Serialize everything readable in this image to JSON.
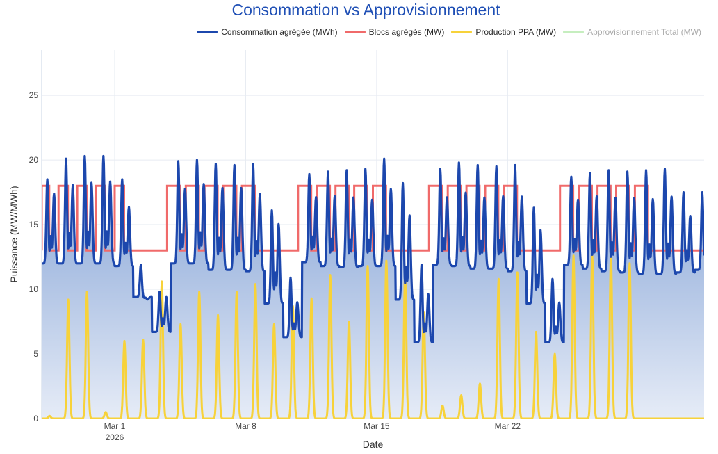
{
  "chart_data": {
    "type": "line",
    "title": "Consommation vs Approvisionnement",
    "xlabel": "Date",
    "ylabel": "Puissance (MW/MWh)",
    "ylim": [
      0,
      28.5
    ],
    "xrange_days": [
      -3.9,
      31.5
    ],
    "x_ticks": [
      {
        "day": 0,
        "label": "Mar 1",
        "sublabel": "2026"
      },
      {
        "day": 7,
        "label": "Mar 8",
        "sublabel": ""
      },
      {
        "day": 14,
        "label": "Mar 15",
        "sublabel": ""
      },
      {
        "day": 21,
        "label": "Mar 22",
        "sublabel": ""
      }
    ],
    "y_ticks": [
      0,
      5,
      10,
      15,
      20,
      25
    ],
    "grid": true,
    "legend_position": "top-right",
    "series": [
      {
        "name": "Consommation agrégée (MWh)",
        "color": "#1c47ad",
        "fill": true,
        "visible": true,
        "daily": [
          {
            "day": -3.9,
            "base": 12,
            "peak1": 18.5,
            "peak2": 17.8
          },
          {
            "day": -3,
            "base": 12,
            "peak1": 20.1,
            "peak2": 18.5
          },
          {
            "day": -2,
            "base": 12,
            "peak1": 20.3,
            "peak2": 18.7
          },
          {
            "day": -1,
            "base": 12,
            "peak1": 20.3,
            "peak2": 18.8
          },
          {
            "day": 0,
            "base": 11.8,
            "peak1": 18.5,
            "peak2": 16.7
          },
          {
            "day": 1,
            "base": 9.4,
            "peak1": 11.9,
            "peak2": 9.2
          },
          {
            "day": 2,
            "base": 6.7,
            "peak1": 9.8,
            "peak2": 9.6
          },
          {
            "day": 3,
            "base": 12,
            "peak1": 19.9,
            "peak2": 18.2
          },
          {
            "day": 4,
            "base": 12,
            "peak1": 20.0,
            "peak2": 18.6
          },
          {
            "day": 5,
            "base": 11.5,
            "peak1": 19.7,
            "peak2": 18.3
          },
          {
            "day": 6,
            "base": 11.5,
            "peak1": 19.6,
            "peak2": 18.3
          },
          {
            "day": 7,
            "base": 11.4,
            "peak1": 19.7,
            "peak2": 17.8
          },
          {
            "day": 8,
            "base": 8.9,
            "peak1": 16.1,
            "peak2": 15.5
          },
          {
            "day": 9,
            "base": 6.3,
            "peak1": 10.9,
            "peak2": 9.2
          },
          {
            "day": 10,
            "base": 12.1,
            "peak1": 18.9,
            "peak2": 17.5
          },
          {
            "day": 11,
            "base": 11.8,
            "peak1": 19.1,
            "peak2": 17.6
          },
          {
            "day": 12,
            "base": 11.7,
            "peak1": 19.2,
            "peak2": 17.5
          },
          {
            "day": 13,
            "base": 11.8,
            "peak1": 19.3,
            "peak2": 17.3
          },
          {
            "day": 14,
            "base": 11.8,
            "peak1": 20.1,
            "peak2": 18.2
          },
          {
            "day": 15,
            "base": 9.2,
            "peak1": 18.2,
            "peak2": 16.2
          },
          {
            "day": 16,
            "base": 5.9,
            "peak1": 11.9,
            "peak2": 9.9
          },
          {
            "day": 17,
            "base": 11.9,
            "peak1": 19.3,
            "peak2": 17.5
          },
          {
            "day": 18,
            "base": 11.8,
            "peak1": 19.8,
            "peak2": 17.9
          },
          {
            "day": 19,
            "base": 11.6,
            "peak1": 19.6,
            "peak2": 17.5
          },
          {
            "day": 20,
            "base": 11.6,
            "peak1": 19.5,
            "peak2": 17.6
          },
          {
            "day": 21,
            "base": 11.4,
            "peak1": 19.6,
            "peak2": 17.6
          },
          {
            "day": 22,
            "base": 8.9,
            "peak1": 16.3,
            "peak2": 15.0
          },
          {
            "day": 23,
            "base": 5.9,
            "peak1": 10.8,
            "peak2": 9.2
          },
          {
            "day": 24,
            "base": 11.9,
            "peak1": 18.7,
            "peak2": 17.3
          },
          {
            "day": 25,
            "base": 11.6,
            "peak1": 19.0,
            "peak2": 17.6
          },
          {
            "day": 26,
            "base": 11.4,
            "peak1": 19.2,
            "peak2": 17.5
          },
          {
            "day": 27,
            "base": 11.3,
            "peak1": 19.1,
            "peak2": 17.5
          },
          {
            "day": 28,
            "base": 11.2,
            "peak1": 19.2,
            "peak2": 17.4
          },
          {
            "day": 29,
            "base": 11.2,
            "peak1": 19.3,
            "peak2": 17.6
          },
          {
            "day": 30,
            "base": 11.3,
            "peak1": 17.5,
            "peak2": 16.0
          },
          {
            "day": 31,
            "base": 11.5,
            "peak1": 17.5,
            "peak2": 15.0
          }
        ]
      },
      {
        "name": "Blocs agrégés (MW)",
        "color": "#f06a6a",
        "fill": false,
        "visible": true,
        "high_value": 18,
        "low_value": 13,
        "high_intervals": [
          [
            -3.9,
            -3.5
          ],
          [
            -3,
            -2.5
          ],
          [
            -2,
            -1.5
          ],
          [
            -1,
            -0.5
          ],
          [
            0,
            0.5
          ],
          [
            2.8,
            3.5
          ],
          [
            3.8,
            4.5
          ],
          [
            4.8,
            5.5
          ],
          [
            5.8,
            6.5
          ],
          [
            6.8,
            7.5
          ],
          [
            9.8,
            10.5
          ],
          [
            10.8,
            11.5
          ],
          [
            11.8,
            12.5
          ],
          [
            12.8,
            13.5
          ],
          [
            13.8,
            14.5
          ],
          [
            16.8,
            17.5
          ],
          [
            17.8,
            18.5
          ],
          [
            18.8,
            19.5
          ],
          [
            19.8,
            20.5
          ],
          [
            20.8,
            21.5
          ],
          [
            23.8,
            24.5
          ],
          [
            24.8,
            25.5
          ],
          [
            25.8,
            26.5
          ],
          [
            26.8,
            27.5
          ],
          [
            27.8,
            28.5
          ]
        ]
      },
      {
        "name": "Production PPA (MW)",
        "color": "#f7d23a",
        "fill": false,
        "visible": true,
        "daily_peaks": [
          {
            "day": -3.9,
            "peak": 0.2
          },
          {
            "day": -3,
            "peak": 9.2
          },
          {
            "day": -2,
            "peak": 9.8
          },
          {
            "day": -1,
            "peak": 0.5
          },
          {
            "day": 0,
            "peak": 6.0
          },
          {
            "day": 1,
            "peak": 6.1
          },
          {
            "day": 2,
            "peak": 10.6
          },
          {
            "day": 3,
            "peak": 7.3
          },
          {
            "day": 4,
            "peak": 9.8
          },
          {
            "day": 5,
            "peak": 8.0
          },
          {
            "day": 6,
            "peak": 9.8
          },
          {
            "day": 7,
            "peak": 10.4
          },
          {
            "day": 8,
            "peak": 7.3
          },
          {
            "day": 9,
            "peak": 8.7
          },
          {
            "day": 10,
            "peak": 9.3
          },
          {
            "day": 11,
            "peak": 11.1
          },
          {
            "day": 12,
            "peak": 7.5
          },
          {
            "day": 13,
            "peak": 11.8
          },
          {
            "day": 14,
            "peak": 12.2
          },
          {
            "day": 15,
            "peak": 11.1
          },
          {
            "day": 16,
            "peak": 8.2
          },
          {
            "day": 17,
            "peak": 1.0
          },
          {
            "day": 18,
            "peak": 1.8
          },
          {
            "day": 19,
            "peak": 2.7
          },
          {
            "day": 20,
            "peak": 10.8
          },
          {
            "day": 21,
            "peak": 11.3
          },
          {
            "day": 22,
            "peak": 6.7
          },
          {
            "day": 23,
            "peak": 5.0
          },
          {
            "day": 24,
            "peak": 12.6
          },
          {
            "day": 25,
            "peak": 12.6
          },
          {
            "day": 26,
            "peak": 12.6
          },
          {
            "day": 27,
            "peak": 12.0
          }
        ]
      },
      {
        "name": "Approvisionnement Total (MW)",
        "color": "#b8e8b0",
        "fill": false,
        "visible": false
      }
    ]
  }
}
